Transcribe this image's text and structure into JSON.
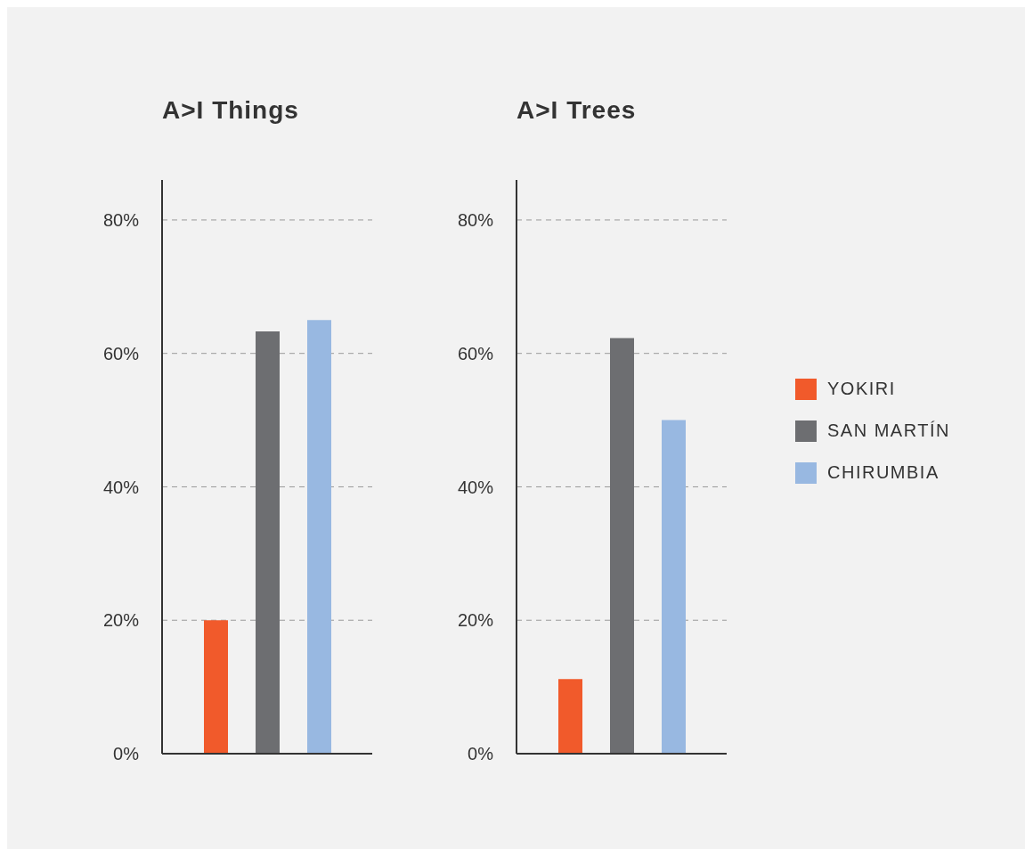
{
  "chart_data": [
    {
      "type": "bar",
      "title": "A>I Things",
      "legend": "right",
      "categories": [
        null
      ],
      "series": [
        {
          "name": "YOKIRI",
          "color": "#f15a2b",
          "values": [
            20
          ]
        },
        {
          "name": "SAN MARTÍN",
          "color": "#6d6e71",
          "values": [
            63.3
          ]
        },
        {
          "name": "CHIRUMBIA",
          "color": "#98b8e1",
          "values": [
            65
          ]
        }
      ],
      "ylim": [
        0,
        86
      ],
      "yticks": [
        {
          "value": 0,
          "label": "0%"
        },
        {
          "value": 20,
          "label": "20%"
        },
        {
          "value": 40,
          "label": "40%"
        },
        {
          "value": 60,
          "label": "60%"
        },
        {
          "value": 80,
          "label": "80%"
        }
      ],
      "grid": "y"
    },
    {
      "type": "bar",
      "title": "A>I Trees",
      "categories": [
        null
      ],
      "series": [
        {
          "name": "YOKIRI",
          "color": "#f15a2b",
          "values": [
            11.2
          ]
        },
        {
          "name": "SAN MARTÍN",
          "color": "#6d6e71",
          "values": [
            62.3
          ]
        },
        {
          "name": "CHIRUMBIA",
          "color": "#98b8e1",
          "values": [
            50
          ]
        }
      ],
      "ylim": [
        0,
        86
      ],
      "yticks": [
        {
          "value": 0,
          "label": "0%"
        },
        {
          "value": 20,
          "label": "20%"
        },
        {
          "value": 40,
          "label": "40%"
        },
        {
          "value": 60,
          "label": "60%"
        },
        {
          "value": 80,
          "label": "80%"
        }
      ],
      "grid": "y",
      "legend": "right"
    }
  ]
}
